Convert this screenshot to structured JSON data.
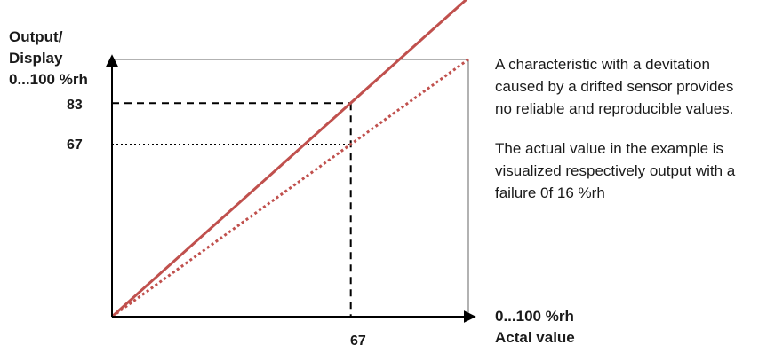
{
  "chart_data": {
    "type": "line",
    "ylabel_lines": [
      "Output/",
      "Display",
      "0...100 %rh"
    ],
    "xlabel_lines": [
      "0...100 %rh",
      "Actal value"
    ],
    "xlim": [
      0,
      100
    ],
    "ylim": [
      0,
      100
    ],
    "series": [
      {
        "style": "solid",
        "color": "#c0504d",
        "x": [
          0,
          100
        ],
        "y": [
          0,
          124
        ]
      },
      {
        "style": "dotted",
        "color": "#c0504d",
        "x": [
          0,
          100
        ],
        "y": [
          0,
          100
        ]
      }
    ],
    "markers": {
      "x": 67,
      "y_drifted": 83,
      "y_ideal": 67
    },
    "y_ticks": [
      "83",
      "67"
    ],
    "x_ticks": [
      "67"
    ]
  },
  "description": [
    "A characteristic with a devitation caused by a drifted sensor provides no reliable and reproducible values.",
    "The actual value in the example is visualized respectively output with a failure 0f 16 %rh"
  ]
}
